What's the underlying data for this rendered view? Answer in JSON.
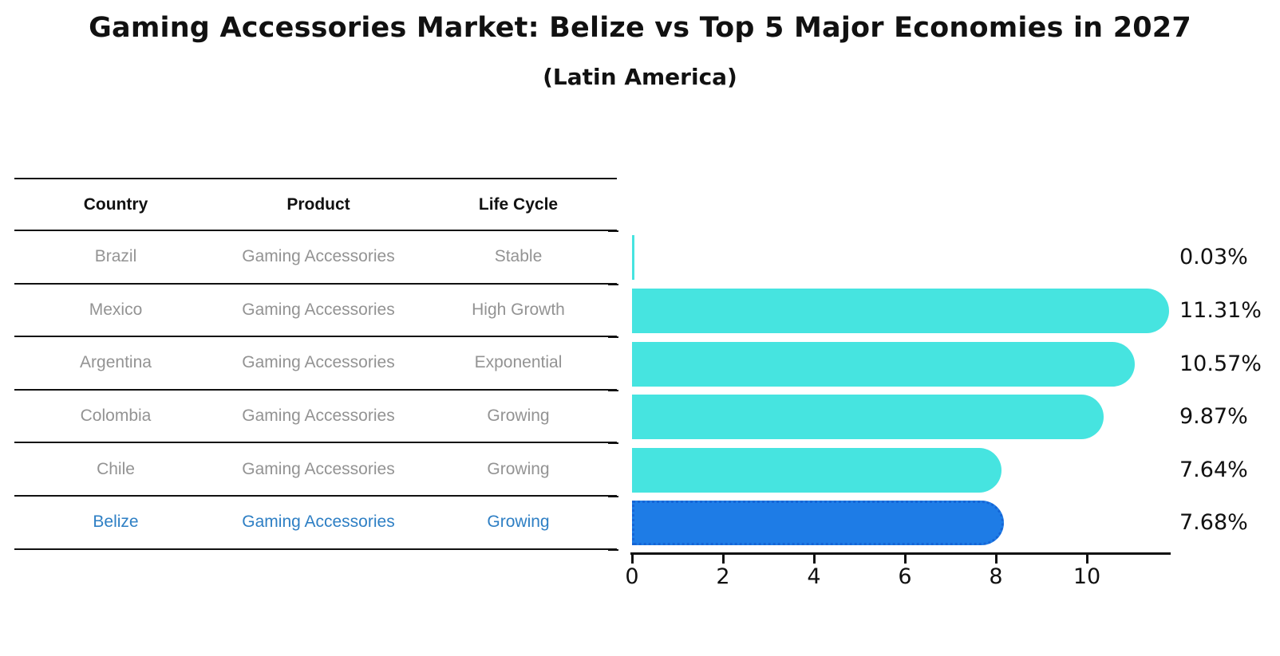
{
  "title": "Gaming Accessories Market: Belize vs Top 5 Major Economies in 2027",
  "subtitle": "(Latin America)",
  "table": {
    "headers": [
      "Country",
      "Product",
      "Life Cycle"
    ],
    "rows": [
      {
        "country": "Brazil",
        "product": "Gaming Accessories",
        "life_cycle": "Stable",
        "highlight": false
      },
      {
        "country": "Mexico",
        "product": "Gaming Accessories",
        "life_cycle": "High Growth",
        "highlight": false
      },
      {
        "country": "Argentina",
        "product": "Gaming Accessories",
        "life_cycle": "Exponential",
        "highlight": false
      },
      {
        "country": "Colombia",
        "product": "Gaming Accessories",
        "life_cycle": "Growing",
        "highlight": false
      },
      {
        "country": "Chile",
        "product": "Gaming Accessories",
        "life_cycle": "Growing",
        "highlight": false
      },
      {
        "country": "Belize",
        "product": "Gaming Accessories",
        "life_cycle": "Growing",
        "highlight": true
      }
    ]
  },
  "chart_data": {
    "type": "bar",
    "orientation": "horizontal",
    "categories": [
      "Brazil",
      "Mexico",
      "Argentina",
      "Colombia",
      "Chile",
      "Belize"
    ],
    "values": [
      0.03,
      11.31,
      10.57,
      9.87,
      7.64,
      7.68
    ],
    "value_labels": [
      "0.03%",
      "11.31%",
      "10.57%",
      "9.87%",
      "7.64%",
      "7.68%"
    ],
    "highlight_index": 5,
    "x_ticks": [
      0,
      2,
      4,
      6,
      8,
      10
    ],
    "xlim": [
      0,
      11.8
    ],
    "xlabel": "",
    "ylabel": "",
    "grid": false,
    "legend": false,
    "bar_color": "#46e4e0",
    "highlight_color": "#1e7ce6",
    "highlight_border_color": "#1565d6"
  }
}
